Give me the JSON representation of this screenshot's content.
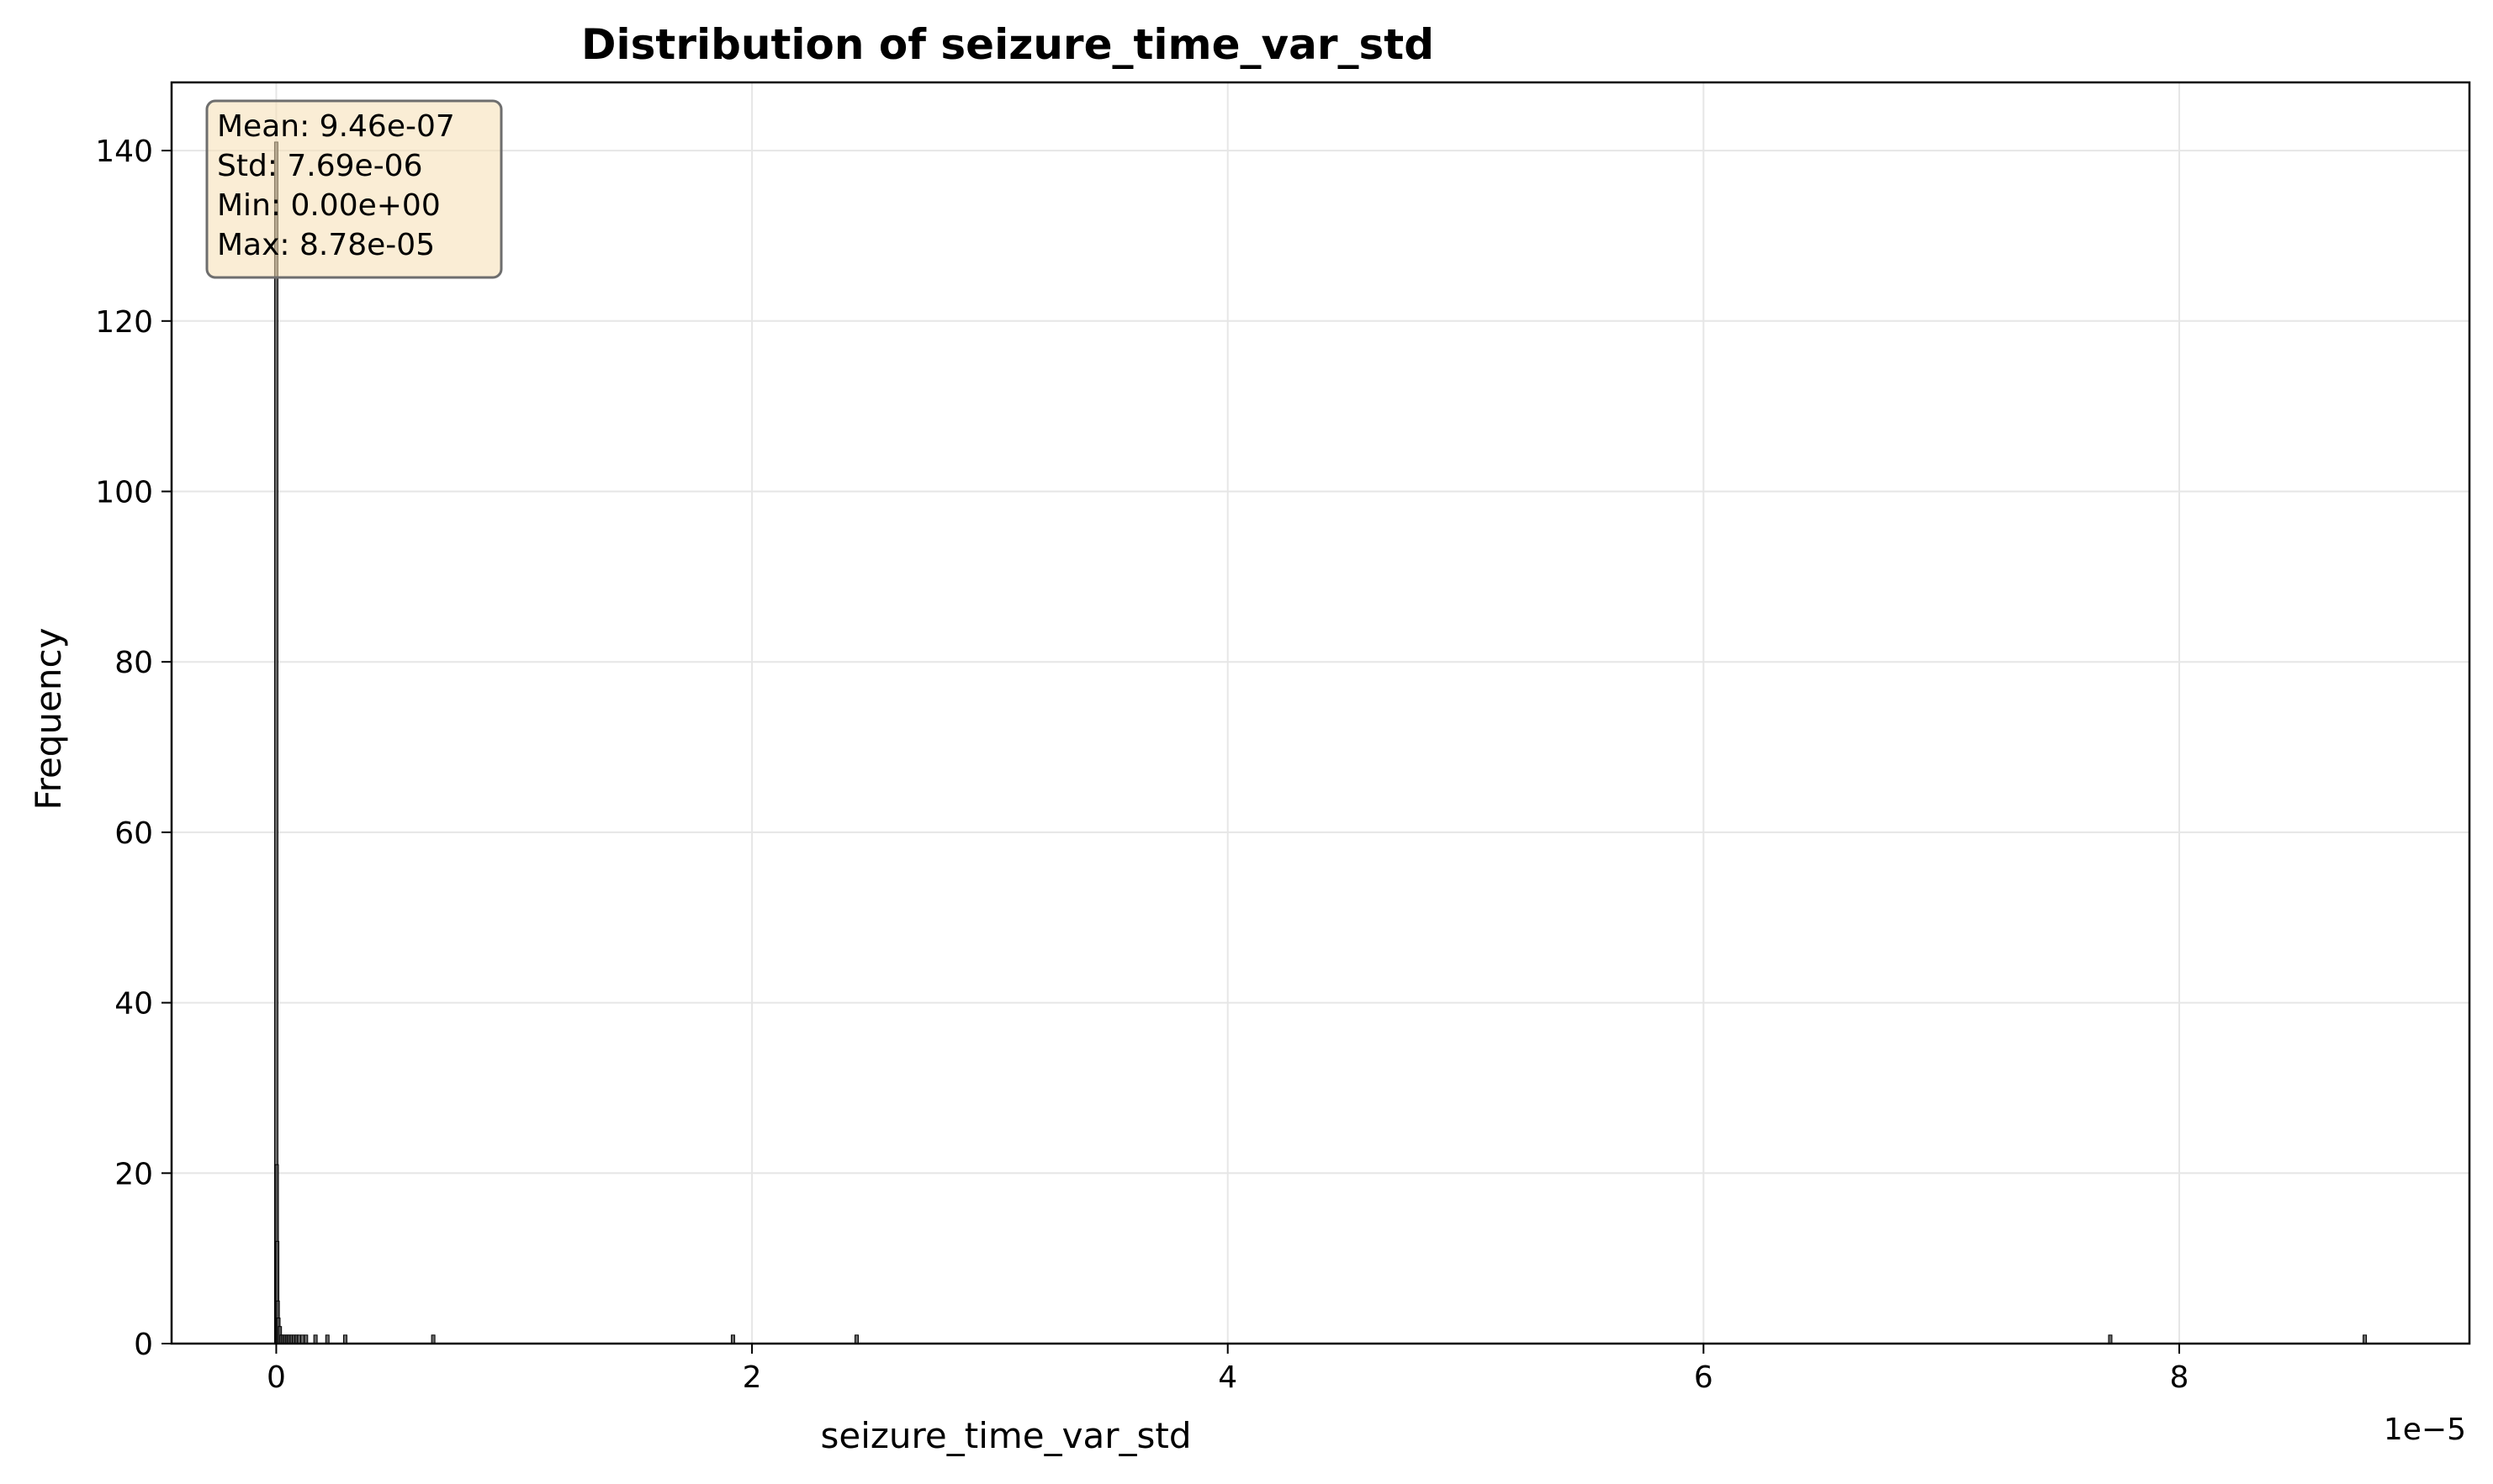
{
  "chart_data": {
    "type": "bar",
    "title": "Distribution of seizure_time_var_std",
    "xlabel": "seizure_time_var_std",
    "ylabel": "Frequency",
    "x_offset_label": "1e−5",
    "xlim": [
      -0.44,
      9.22
    ],
    "ylim": [
      0,
      148
    ],
    "x_ticks": [
      0,
      2,
      4,
      6,
      8
    ],
    "x_tick_labels": [
      "0",
      "2",
      "4",
      "6",
      "8"
    ],
    "y_ticks": [
      0,
      20,
      40,
      60,
      80,
      100,
      120,
      140
    ],
    "y_tick_labels": [
      "0",
      "20",
      "40",
      "60",
      "80",
      "100",
      "120",
      "140"
    ],
    "grid": true,
    "bar_color": "#4d4d4d",
    "stats_box_color": "#f5deb3",
    "bins": [
      {
        "x": 0.0,
        "count": 141
      },
      {
        "x": 0.002,
        "count": 21
      },
      {
        "x": 0.004,
        "count": 12
      },
      {
        "x": 0.006,
        "count": 5
      },
      {
        "x": 0.009,
        "count": 3
      },
      {
        "x": 0.015,
        "count": 2
      },
      {
        "x": 0.022,
        "count": 1
      },
      {
        "x": 0.03,
        "count": 1
      },
      {
        "x": 0.038,
        "count": 1
      },
      {
        "x": 0.047,
        "count": 1
      },
      {
        "x": 0.055,
        "count": 1
      },
      {
        "x": 0.065,
        "count": 1
      },
      {
        "x": 0.075,
        "count": 1
      },
      {
        "x": 0.085,
        "count": 1
      },
      {
        "x": 0.095,
        "count": 1
      },
      {
        "x": 0.11,
        "count": 1
      },
      {
        "x": 0.125,
        "count": 1
      },
      {
        "x": 0.165,
        "count": 1
      },
      {
        "x": 0.215,
        "count": 1
      },
      {
        "x": 0.29,
        "count": 1
      },
      {
        "x": 0.66,
        "count": 1
      },
      {
        "x": 1.92,
        "count": 1
      },
      {
        "x": 2.44,
        "count": 1
      },
      {
        "x": 7.71,
        "count": 1
      },
      {
        "x": 8.78,
        "count": 1
      }
    ],
    "stats": {
      "mean": "Mean: 9.46e-07",
      "std": "Std: 7.69e-06",
      "min": "Min: 0.00e+00",
      "max": "Max: 8.78e-05"
    }
  }
}
